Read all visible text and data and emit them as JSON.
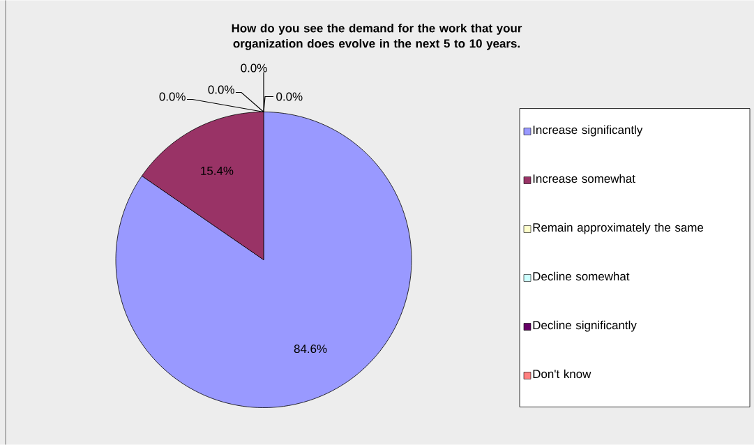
{
  "chart_data": {
    "type": "pie",
    "title": "How do you see the demand for the work that your organization does evolve in the next 5 to 10 years.",
    "categories": [
      "Increase significantly",
      "Increase somewhat",
      "Remain approximately the same",
      "Decline somewhat",
      "Decline significantly",
      "Don't know"
    ],
    "values": [
      84.6,
      15.4,
      0,
      0,
      0,
      0
    ],
    "value_labels": [
      "84.6%",
      "15.4%",
      "0.0%",
      "0.0%",
      "0.0%",
      "0.0%"
    ],
    "colors": [
      "#9999ff",
      "#993366",
      "#ffffcc",
      "#ccffff",
      "#660066",
      "#ff8080"
    ],
    "legend": "right"
  }
}
